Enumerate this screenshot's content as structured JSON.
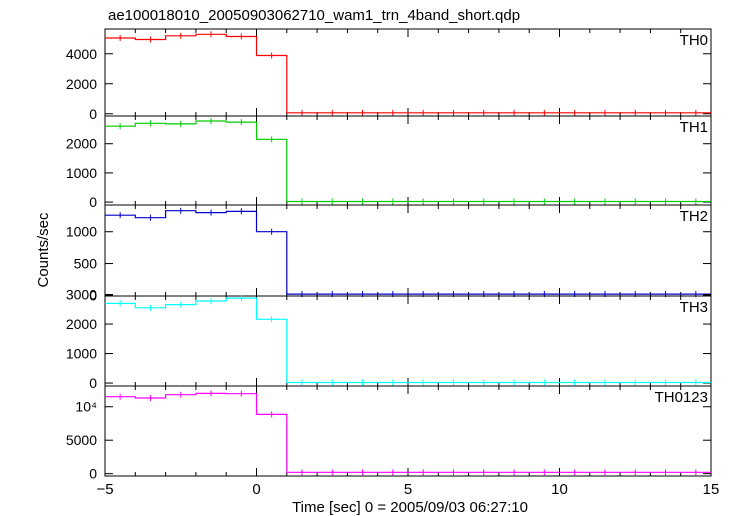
{
  "title": "ae100018010_20050903062710_wam1_trn_4band_short.qdp",
  "ylabel": "Counts/sec",
  "xlabel": "Time [sec] 0 = 2005/09/03 06:27:10",
  "chart_data": [
    {
      "type": "line",
      "name": "TH0",
      "color": "#ff0000",
      "x": [
        -5,
        -4,
        -3,
        -2,
        -1,
        0,
        1,
        2,
        3,
        4,
        5,
        6,
        7,
        8,
        9,
        10,
        11,
        12,
        13,
        14
      ],
      "bin_width": 1,
      "values": [
        5050,
        4950,
        5200,
        5300,
        5150,
        3880,
        60,
        60,
        60,
        60,
        60,
        60,
        60,
        60,
        60,
        60,
        60,
        60,
        60,
        60
      ],
      "ylim": [
        -150,
        5650
      ],
      "yticks": [
        {
          "v": 0,
          "label": "0"
        },
        {
          "v": 2000,
          "label": "2000"
        },
        {
          "v": 4000,
          "label": "4000"
        }
      ]
    },
    {
      "type": "line",
      "name": "TH1",
      "color": "#00cc00",
      "x": [
        -5,
        -4,
        -3,
        -2,
        -1,
        0,
        1,
        2,
        3,
        4,
        5,
        6,
        7,
        8,
        9,
        10,
        11,
        12,
        13,
        14
      ],
      "bin_width": 1,
      "values": [
        2600,
        2700,
        2680,
        2780,
        2740,
        2150,
        20,
        20,
        20,
        20,
        20,
        20,
        20,
        20,
        20,
        20,
        20,
        20,
        20,
        20
      ],
      "ylim": [
        -100,
        2950
      ],
      "yticks": [
        {
          "v": 0,
          "label": "0"
        },
        {
          "v": 1000,
          "label": "1000"
        },
        {
          "v": 2000,
          "label": "2000"
        }
      ]
    },
    {
      "type": "line",
      "name": "TH2",
      "color": "#0000cc",
      "x": [
        -5,
        -4,
        -3,
        -2,
        -1,
        0,
        1,
        2,
        3,
        4,
        5,
        6,
        7,
        8,
        9,
        10,
        11,
        12,
        13,
        14
      ],
      "bin_width": 1,
      "values": [
        1260,
        1220,
        1330,
        1300,
        1320,
        1000,
        20,
        20,
        20,
        20,
        20,
        20,
        20,
        20,
        20,
        20,
        20,
        20,
        20,
        20
      ],
      "ylim": [
        -10,
        1420
      ],
      "yticks": [
        {
          "v": 0,
          "label": "0"
        },
        {
          "v": 500,
          "label": "500"
        },
        {
          "v": 1000,
          "label": "1000"
        }
      ]
    },
    {
      "type": "line",
      "name": "TH3",
      "color": "#00ffff",
      "x": [
        -5,
        -4,
        -3,
        -2,
        -1,
        0,
        1,
        2,
        3,
        4,
        5,
        6,
        7,
        8,
        9,
        10,
        11,
        12,
        13,
        14
      ],
      "bin_width": 1,
      "values": [
        2700,
        2550,
        2660,
        2780,
        2880,
        2160,
        20,
        20,
        20,
        20,
        20,
        20,
        20,
        20,
        20,
        20,
        20,
        20,
        20,
        20
      ],
      "ylim": [
        -100,
        2950
      ],
      "yticks": [
        {
          "v": 0,
          "label": "0"
        },
        {
          "v": 1000,
          "label": "1000"
        },
        {
          "v": 2000,
          "label": "2000"
        },
        {
          "v": 3000,
          "label": "3000"
        }
      ]
    },
    {
      "type": "line",
      "name": "TH0123",
      "color": "#ff00ff",
      "x": [
        -5,
        -4,
        -3,
        -2,
        -1,
        0,
        1,
        2,
        3,
        4,
        5,
        6,
        7,
        8,
        9,
        10,
        11,
        12,
        13,
        14
      ],
      "bin_width": 1,
      "values": [
        11500,
        11300,
        11800,
        12000,
        11950,
        8850,
        200,
        200,
        200,
        200,
        200,
        200,
        200,
        200,
        200,
        200,
        200,
        200,
        200,
        200
      ],
      "ylim": [
        -350,
        13100
      ],
      "yticks": [
        {
          "v": 0,
          "label": "0"
        },
        {
          "v": 5000,
          "label": "5000"
        },
        {
          "v": 10000,
          "label": "10⁴"
        }
      ]
    }
  ],
  "xaxis": {
    "xlim": [
      -5,
      15
    ],
    "ticks": [
      {
        "v": -5,
        "label": "−5"
      },
      {
        "v": 0,
        "label": "0"
      },
      {
        "v": 5,
        "label": "5"
      },
      {
        "v": 10,
        "label": "10"
      },
      {
        "v": 15,
        "label": "15"
      }
    ]
  }
}
